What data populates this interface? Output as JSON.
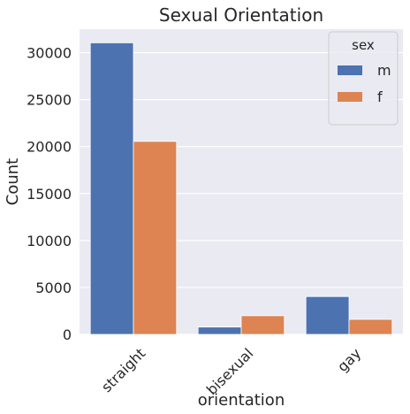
{
  "chart_data": {
    "type": "bar",
    "title": "Sexual Orientation",
    "xlabel": "orientation",
    "ylabel": "Count",
    "categories": [
      "straight",
      "bisexual",
      "gay"
    ],
    "series": [
      {
        "name": "m",
        "values": [
          31050,
          780,
          4030
        ]
      },
      {
        "name": "f",
        "values": [
          20550,
          1990,
          1600
        ]
      }
    ],
    "ylim": [
      0,
      32500
    ],
    "yticks": [
      0,
      5000,
      10000,
      15000,
      20000,
      25000,
      30000
    ],
    "ytick_labels": [
      "0",
      "5000",
      "10000",
      "15000",
      "20000",
      "25000",
      "30000"
    ],
    "legend": {
      "title": "sex",
      "position": "top-right"
    },
    "grid": true,
    "colors": {
      "m": "#4c72b0",
      "f": "#dd8452",
      "plot_background": "#eaeaf2",
      "grid": "#ffffff"
    }
  }
}
